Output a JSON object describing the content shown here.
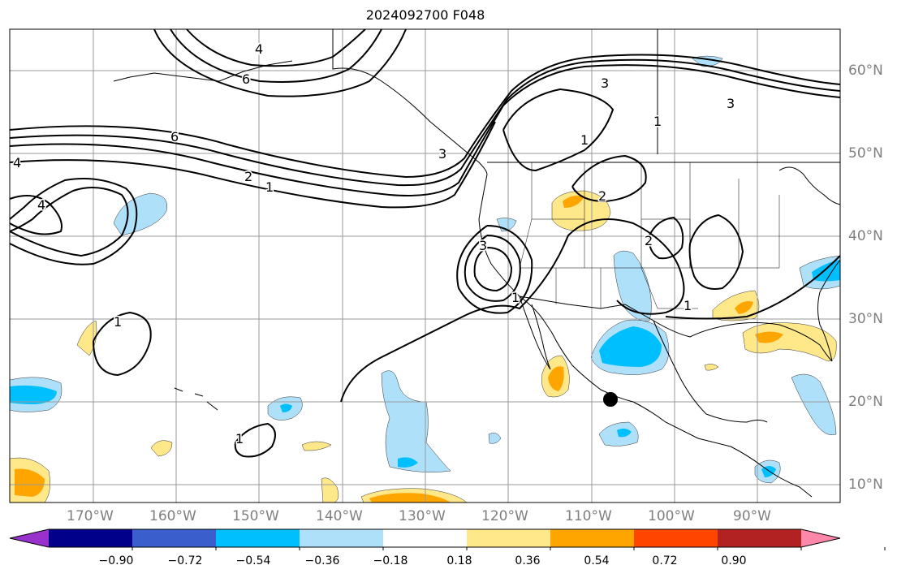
{
  "title": "2024092700 F048",
  "lat_labels": [
    "60°N",
    "50°N",
    "40°N",
    "30°N",
    "20°N",
    "10°N"
  ],
  "lon_labels": [
    "170°W",
    "160°W",
    "150°W",
    "140°W",
    "130°W",
    "120°W",
    "110°W",
    "100°W",
    "90°W"
  ],
  "contour_labels": [
    "4",
    "4",
    "6",
    "6",
    "2",
    "1",
    "4",
    "3",
    "3",
    "1",
    "3",
    "1",
    "2",
    "2",
    "3",
    "1",
    "1",
    "1",
    "1"
  ],
  "colorbar": {
    "ticks": [
      "−0.90",
      "−0.72",
      "−0.54",
      "−0.36",
      "−0.18",
      "0.18",
      "0.36",
      "0.54",
      "0.72",
      "0.90"
    ],
    "colors": [
      "#9932cc",
      "#00008b",
      "#3a5fcd",
      "#00bfff",
      "#afe0fa",
      "#ffffff",
      "#ffe88a",
      "#ffa500",
      "#ff4500",
      "#b22222",
      "#ff88aa"
    ]
  },
  "marker": "black-dot"
}
